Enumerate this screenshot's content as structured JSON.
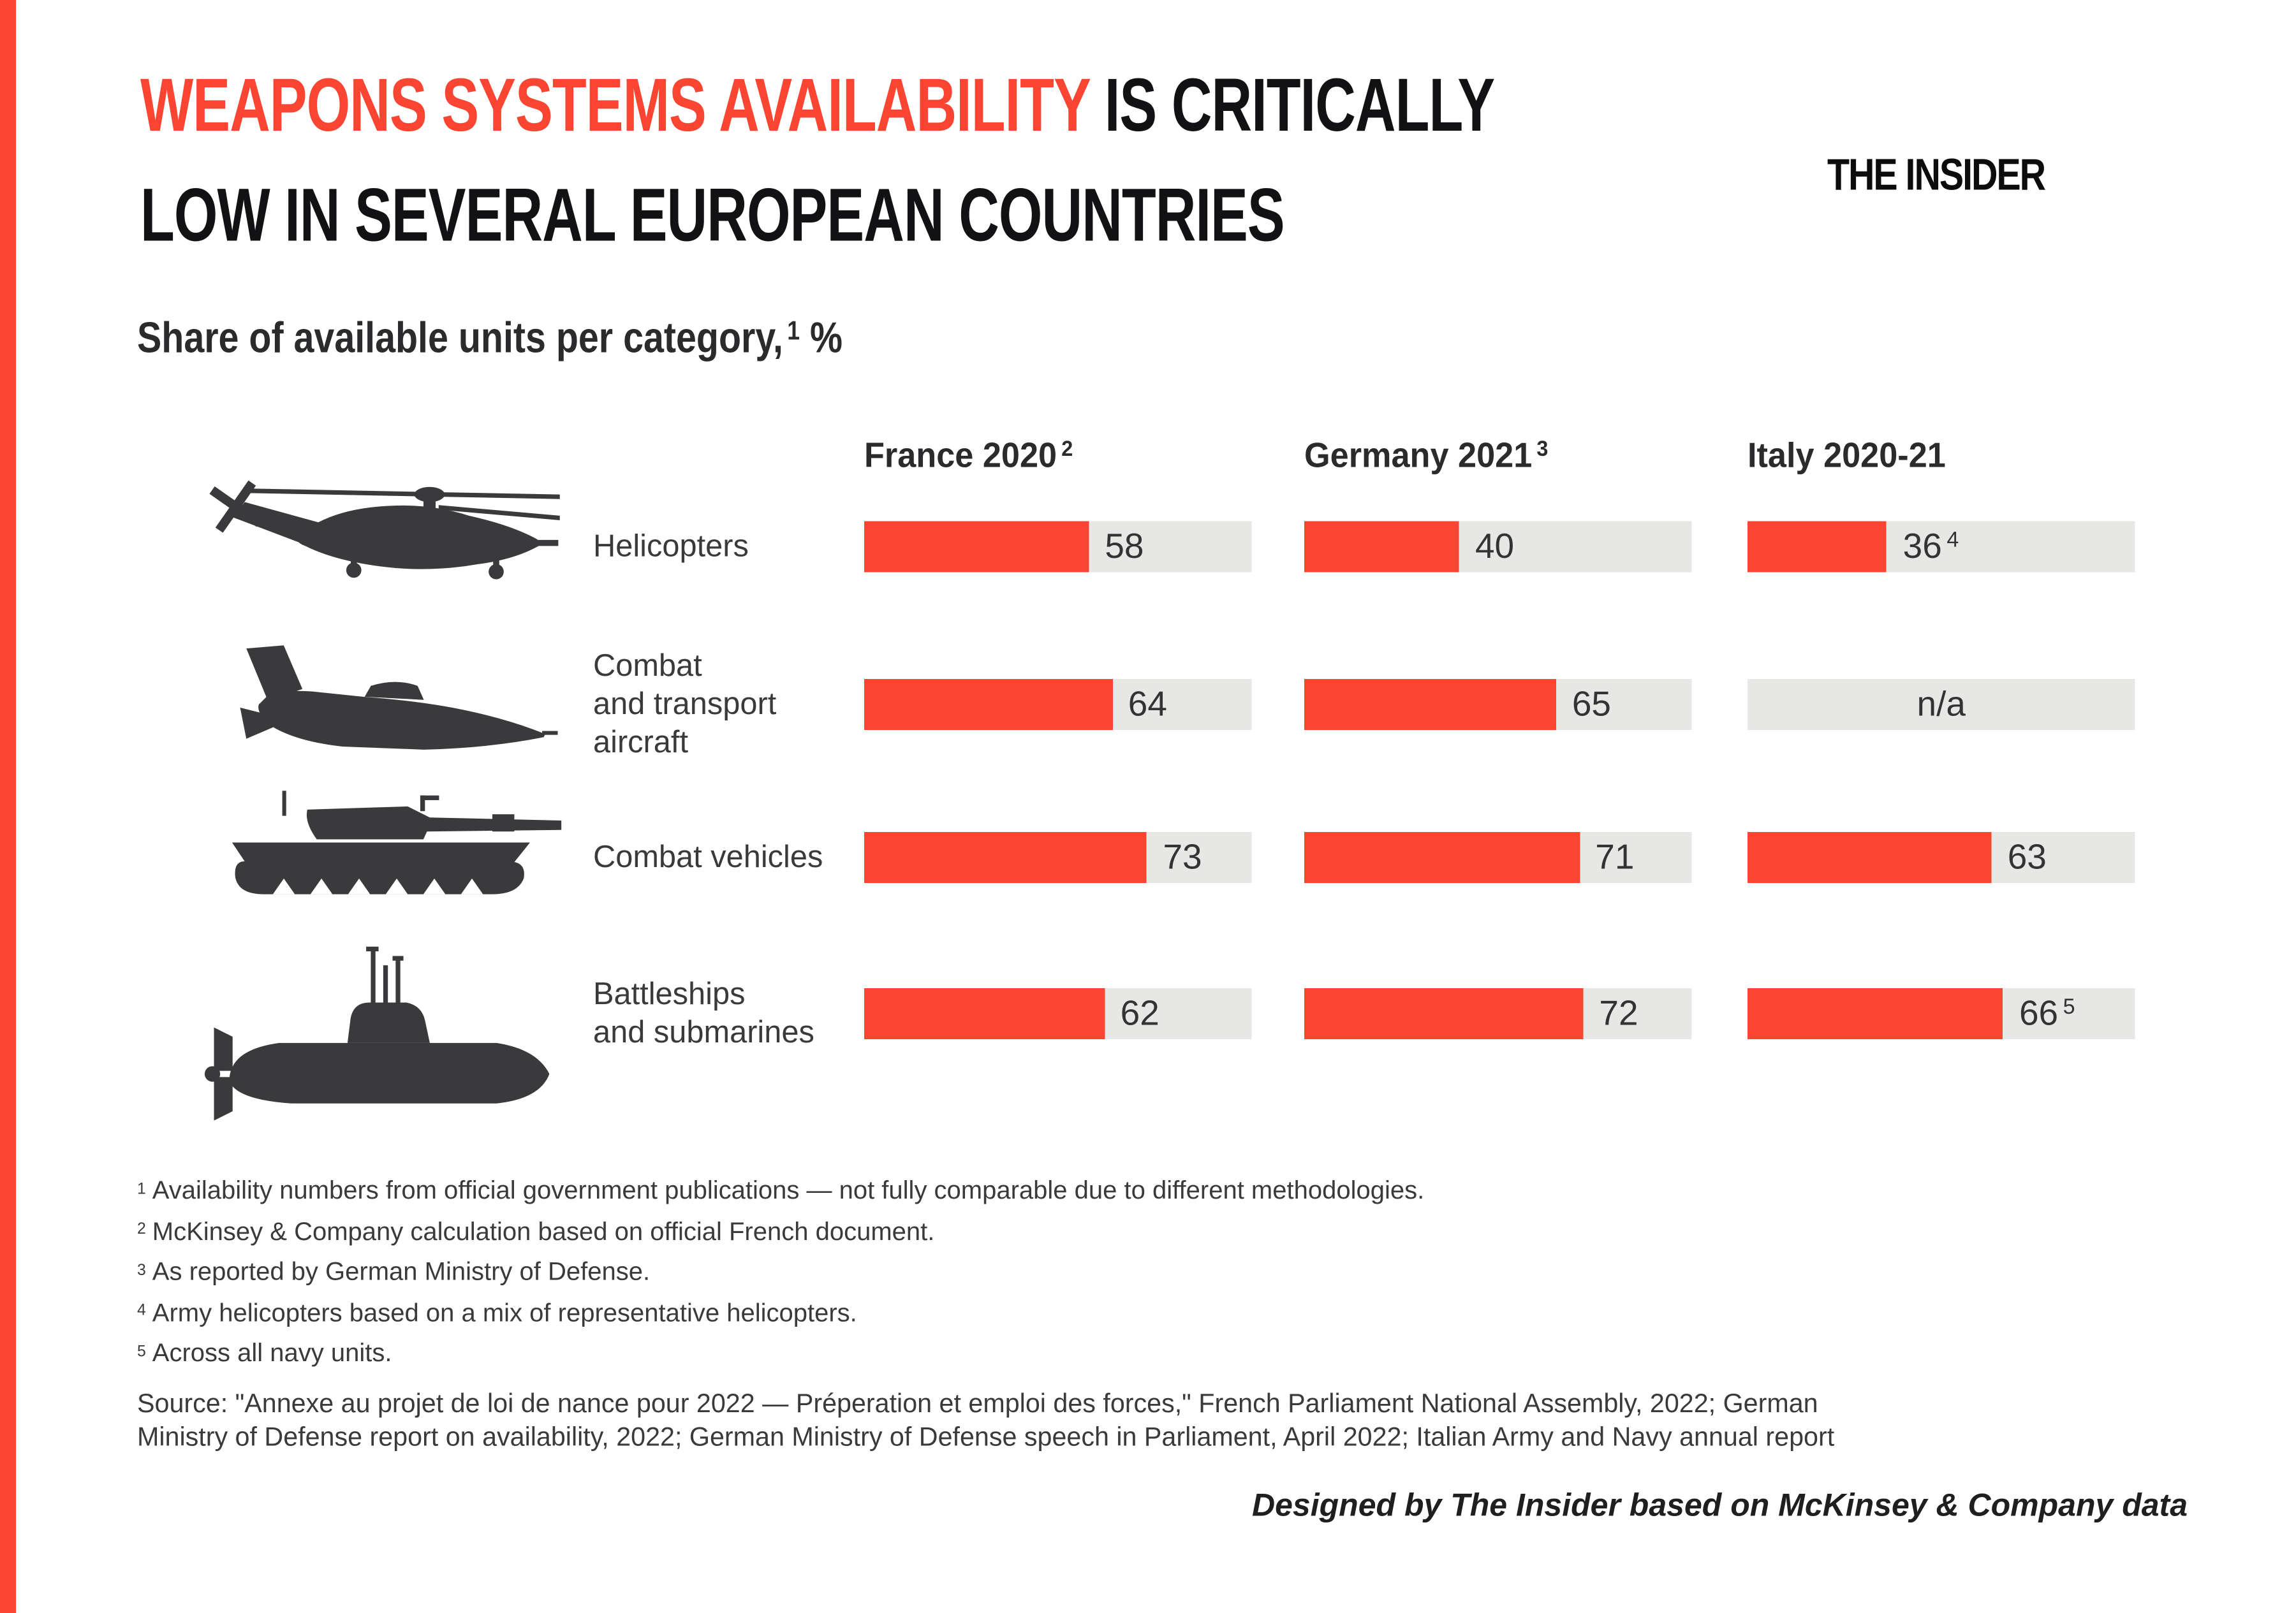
{
  "colors": {
    "accent_red": "#fa4532",
    "track_gray": "#e7e7e6",
    "icon_charcoal": "#3a3a3c"
  },
  "header": {
    "title_highlight": "WEAPONS SYSTEMS AVAILABILITY",
    "title_rest_line1": " IS CRITICALLY",
    "title_line2": "LOW IN SEVERAL EUROPEAN COUNTRIES",
    "logo_text": "THE INSIDER"
  },
  "subtitle": {
    "text": "Share of available units per category,",
    "footnote_sup": "1",
    "unit_suffix": " %"
  },
  "chart_data": {
    "type": "bar",
    "orientation": "horizontal",
    "unit": "%",
    "xlim": [
      0,
      100
    ],
    "grid": false,
    "legend_position": "column-headers-top",
    "title": "Share of available units per category, %",
    "categories": [
      "Helicopters",
      "Combat and transport aircraft",
      "Combat vehicles",
      "Battleships and submarines"
    ],
    "series": [
      {
        "name": "France 2020",
        "footnote_sup": "2",
        "values": [
          58,
          64,
          73,
          62
        ]
      },
      {
        "name": "Germany 2021",
        "footnote_sup": "3",
        "values": [
          40,
          65,
          71,
          72
        ]
      },
      {
        "name": "Italy 2020-21",
        "footnote_sup": "",
        "values": [
          36,
          null,
          63,
          66
        ]
      }
    ],
    "value_sups": [
      [
        "",
        "",
        "4"
      ],
      [
        "",
        "",
        ""
      ],
      [
        "",
        "",
        ""
      ],
      [
        "",
        "",
        "5"
      ]
    ],
    "na_label": "n/a"
  },
  "category_display": [
    {
      "lines": [
        "Helicopters"
      ]
    },
    {
      "lines": [
        "Combat",
        "and transport",
        "aircraft"
      ]
    },
    {
      "lines": [
        "Combat vehicles"
      ]
    },
    {
      "lines": [
        "Battleships",
        "and submarines"
      ]
    }
  ],
  "footnotes": [
    {
      "sup": "1",
      "text": "Availability numbers from official government publications — not fully comparable due to different methodologies."
    },
    {
      "sup": "2",
      "text": "McKinsey & Company calculation based on official French document."
    },
    {
      "sup": "3",
      "text": "As reported by German Ministry of Defense."
    },
    {
      "sup": "4",
      "text": "Army helicopters based on a mix of representative helicopters."
    },
    {
      "sup": "5",
      "text": "Across all navy units."
    }
  ],
  "source_lines": [
    "Source: \"Annexe au projet de loi de nance pour 2022 — Préperation et emploi des forces,\" French Parliament National Assembly, 2022; German",
    "Ministry of Defense report on availability, 2022; German Ministry of Defense speech in Parliament, April 2022; Italian Army and Navy annual report"
  ],
  "credit": "Designed by The Insider based on McKinsey & Company data"
}
